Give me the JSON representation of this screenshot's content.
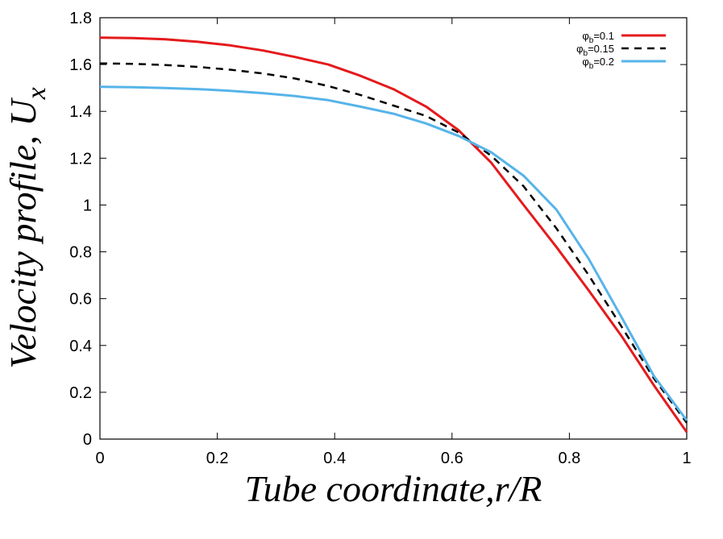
{
  "chart_data": {
    "type": "line",
    "xlabel": "Tube coordinate,r/R",
    "ylabel": "Velocity profile, U",
    "ylabel_subscript": "x",
    "xlim": [
      0,
      1
    ],
    "ylim": [
      0,
      1.8
    ],
    "x_ticks": [
      0,
      0.2,
      0.4,
      0.6,
      0.8,
      1
    ],
    "x_tick_labels": [
      "0",
      "0.2",
      "0.4",
      "0.6",
      "0.8",
      "1"
    ],
    "y_ticks": [
      0,
      0.2,
      0.4,
      0.6,
      0.8,
      1,
      1.2,
      1.4,
      1.6,
      1.8
    ],
    "y_tick_labels": [
      "0",
      "0.2",
      "0.4",
      "0.6",
      "0.8",
      "1",
      "1.2",
      "1.4",
      "1.6",
      "1.8"
    ],
    "grid": false,
    "legend_position": "top-right",
    "series": [
      {
        "name": "φb=0.1",
        "legend_symbol": "φ",
        "legend_sub": "b",
        "legend_value": "=0.1",
        "color": "#e41a1c",
        "dash": "solid",
        "x": [
          0,
          0.056,
          0.111,
          0.167,
          0.222,
          0.278,
          0.333,
          0.389,
          0.444,
          0.5,
          0.556,
          0.611,
          0.667,
          0.722,
          0.778,
          0.833,
          0.889,
          0.944,
          1.0
        ],
        "y": [
          1.715,
          1.713,
          1.708,
          1.697,
          1.682,
          1.66,
          1.632,
          1.6,
          1.552,
          1.495,
          1.42,
          1.32,
          1.18,
          1.0,
          0.82,
          0.635,
          0.44,
          0.23,
          0.03
        ]
      },
      {
        "name": "φb=0.15",
        "legend_symbol": "φ",
        "legend_sub": "b",
        "legend_value": "=0.15",
        "color": "#000000",
        "dash": "dashed",
        "x": [
          0,
          0.056,
          0.111,
          0.167,
          0.222,
          0.278,
          0.333,
          0.389,
          0.444,
          0.5,
          0.556,
          0.611,
          0.667,
          0.722,
          0.778,
          0.833,
          0.889,
          0.944,
          1.0
        ],
        "y": [
          1.605,
          1.603,
          1.598,
          1.59,
          1.578,
          1.562,
          1.54,
          1.508,
          1.47,
          1.425,
          1.38,
          1.31,
          1.21,
          1.08,
          0.9,
          0.7,
          0.48,
          0.26,
          0.07
        ]
      },
      {
        "name": "φb=0.2",
        "legend_symbol": "φ",
        "legend_sub": "b",
        "legend_value": "=0.2",
        "color": "#56b4e9",
        "dash": "solid",
        "x": [
          0,
          0.056,
          0.111,
          0.167,
          0.222,
          0.278,
          0.333,
          0.389,
          0.444,
          0.5,
          0.556,
          0.611,
          0.667,
          0.722,
          0.778,
          0.833,
          0.889,
          0.944,
          1.0
        ],
        "y": [
          1.505,
          1.503,
          1.5,
          1.495,
          1.488,
          1.478,
          1.465,
          1.448,
          1.42,
          1.39,
          1.348,
          1.295,
          1.225,
          1.125,
          0.98,
          0.77,
          0.52,
          0.27,
          0.08
        ]
      }
    ]
  }
}
